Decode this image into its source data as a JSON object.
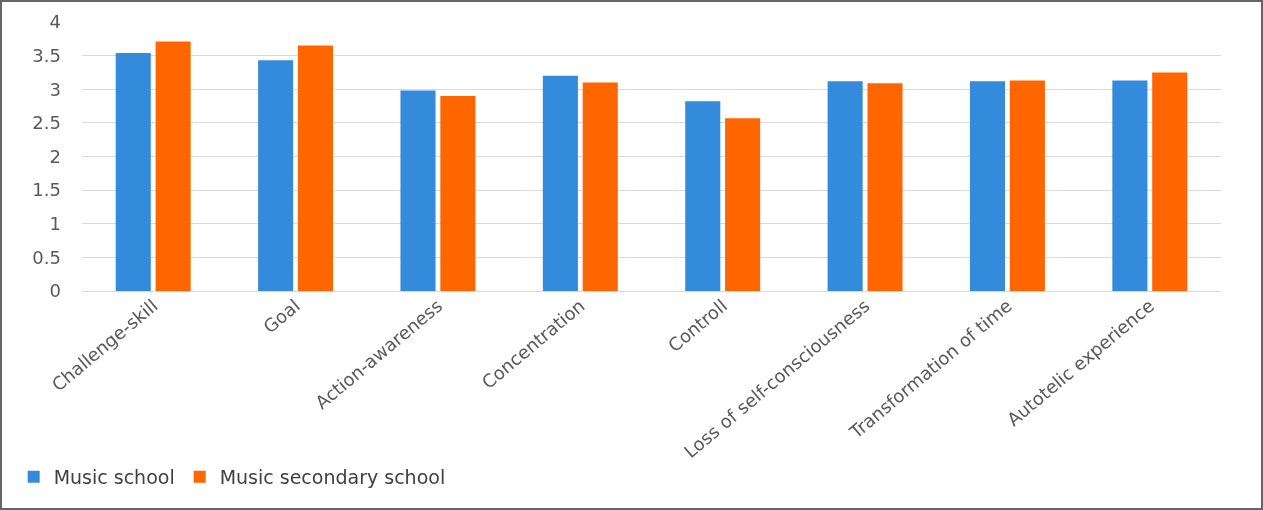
{
  "chart_data": {
    "type": "bar",
    "categories": [
      "Challenge-skill",
      "Goal",
      "Action-awareness",
      "Concentration",
      "Controll",
      "Loss of self-consciousness",
      "Transformation of time",
      "Autotelic experience"
    ],
    "series": [
      {
        "name": "Music school",
        "color": "#348adb",
        "values": [
          3.54,
          3.43,
          2.98,
          3.2,
          2.82,
          3.12,
          3.12,
          3.13
        ]
      },
      {
        "name": "Music secondary school",
        "color": "#ff6600",
        "values": [
          3.71,
          3.65,
          2.9,
          3.1,
          2.57,
          3.09,
          3.13,
          3.25
        ]
      }
    ],
    "ylim": [
      0,
      4
    ],
    "yticks": [
      0,
      {
        "value": 0.5,
        "label": "0.5"
      },
      1,
      {
        "value": 1.5,
        "label": "1.5"
      },
      2,
      {
        "value": 2.5,
        "label": "2.5"
      },
      3,
      {
        "value": 3.5,
        "label": "3.5"
      },
      4
    ],
    "grid": "y",
    "legend": "bottom left"
  }
}
